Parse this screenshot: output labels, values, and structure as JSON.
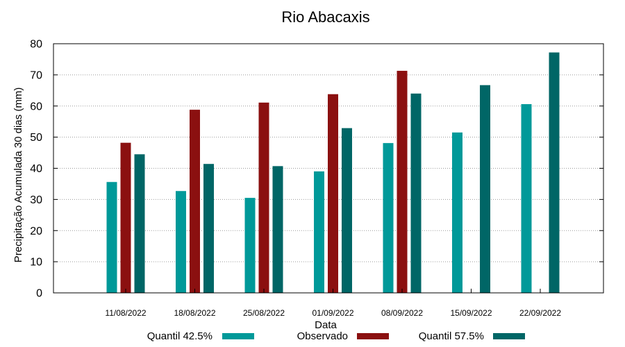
{
  "chart_data": {
    "type": "bar",
    "title": "Rio Abacaxis",
    "xlabel": "Data",
    "ylabel": "Precipitação Acumulada 30 dias (mm)",
    "ylim": [
      0,
      80
    ],
    "yticks": [
      0,
      10,
      20,
      30,
      40,
      50,
      60,
      70,
      80
    ],
    "grid": true,
    "legend_position": "bottom",
    "categories": [
      "11/08/2022",
      "18/08/2022",
      "25/08/2022",
      "01/09/2022",
      "08/09/2022",
      "15/09/2022",
      "22/09/2022"
    ],
    "series": [
      {
        "name": "Quantil 42.5%",
        "color": "#009999",
        "values": [
          35.6,
          32.7,
          30.5,
          39.0,
          48.1,
          51.5,
          60.6
        ]
      },
      {
        "name": "Observado",
        "color": "#8b1010",
        "values": [
          48.2,
          58.8,
          61.1,
          63.8,
          71.3,
          null,
          null
        ]
      },
      {
        "name": "Quantil 57.5%",
        "color": "#006666",
        "values": [
          44.5,
          41.4,
          40.7,
          52.9,
          64.0,
          66.7,
          77.2
        ]
      }
    ]
  }
}
